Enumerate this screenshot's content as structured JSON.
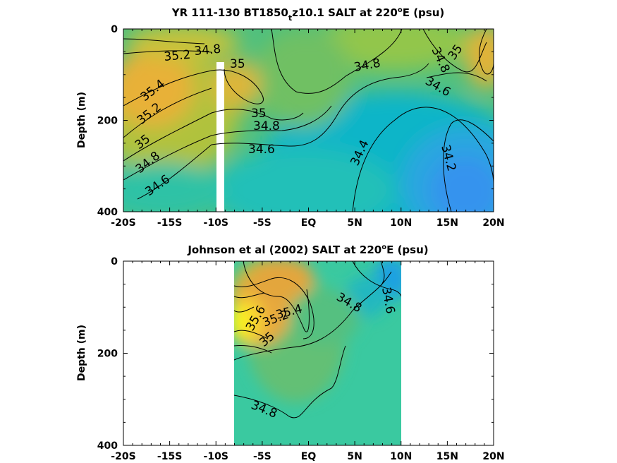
{
  "chart_data": [
    {
      "type": "heatmap",
      "title_main": "YR 111-130 BT1850",
      "title_sub": "t",
      "title_rest": "z10.1 SALT at 220",
      "title_sup": "o",
      "title_end": "E (psu)",
      "ylabel": "Depth (m)",
      "xlabel": "",
      "x_ticks": [
        "-20S",
        "-15S",
        "-10S",
        "-5S",
        "EQ",
        "5N",
        "10N",
        "15N",
        "20N"
      ],
      "x_tick_values": [
        -20,
        -15,
        -10,
        -5,
        0,
        5,
        10,
        15,
        20
      ],
      "y_ticks": [
        "0",
        "200",
        "400"
      ],
      "y_tick_values": [
        0,
        200,
        400
      ],
      "xlim": [
        -20,
        20
      ],
      "ylim": [
        0,
        400
      ],
      "y_reversed": true,
      "contour_levels": [
        34.2,
        34.4,
        34.6,
        34.8,
        35,
        35.2,
        35.4
      ],
      "contour_labels": [
        {
          "text": "35.2",
          "x": -14.5,
          "y": 58
        },
        {
          "text": "34.8",
          "x": -11.0,
          "y": 48
        },
        {
          "text": "35",
          "x": -7.5,
          "y": 72
        },
        {
          "text": "35.4",
          "x": -17.0,
          "y": 135
        },
        {
          "text": "35.2",
          "x": -17.5,
          "y": 185
        },
        {
          "text": "35",
          "x": -19.0,
          "y": 240
        },
        {
          "text": "34.8",
          "x": -18.0,
          "y": 280
        },
        {
          "text": "34.6",
          "x": -16.5,
          "y": 330
        },
        {
          "text": "35",
          "x": -5.5,
          "y": 180
        },
        {
          "text": "34.8",
          "x": -4.5,
          "y": 210
        },
        {
          "text": "34.6",
          "x": -5.0,
          "y": 260
        },
        {
          "text": "34.8",
          "x": 6.8,
          "y": 75
        },
        {
          "text": "34.4",
          "x": 6.0,
          "y": 260
        },
        {
          "text": "34.8",
          "x": 13.5,
          "y": 75
        },
        {
          "text": "35",
          "x": 16.3,
          "y": 62
        },
        {
          "text": "34.6",
          "x": 13.5,
          "y": 120
        },
        {
          "text": "34.2",
          "x": 15.8,
          "y": 290
        }
      ],
      "missing_column_x": [
        -10.9,
        -10.0
      ],
      "missing_column_top_depth": 75
    },
    {
      "type": "heatmap",
      "title_main": "Johnson et al (2002) SALT at 220",
      "title_sup": "o",
      "title_end": "E (psu)",
      "ylabel": "Depth (m)",
      "xlabel": "",
      "x_ticks": [
        "-20S",
        "-15S",
        "-10S",
        "-5S",
        "EQ",
        "5N",
        "10N",
        "15N",
        "20N"
      ],
      "x_tick_values": [
        -20,
        -15,
        -10,
        -5,
        0,
        5,
        10,
        15,
        20
      ],
      "y_ticks": [
        "0",
        "200",
        "400"
      ],
      "y_tick_values": [
        0,
        200,
        400
      ],
      "xlim": [
        -20,
        20
      ],
      "ylim": [
        0,
        400
      ],
      "y_reversed": true,
      "data_xrange": [
        -8,
        10
      ],
      "contour_levels": [
        34.6,
        34.8,
        35,
        35.2,
        35.4,
        35.6
      ],
      "contour_labels": [
        {
          "text": "35.4",
          "x": -2.3,
          "y": 110
        },
        {
          "text": "35.2",
          "x": -4.3,
          "y": 130
        },
        {
          "text": "35.6",
          "x": -6.0,
          "y": 120
        },
        {
          "text": "35",
          "x": -5.5,
          "y": 165
        },
        {
          "text": "34.8",
          "x": 4.6,
          "y": 100
        },
        {
          "text": "34.6",
          "x": 8.1,
          "y": 90
        },
        {
          "text": "34.8",
          "x": -4.5,
          "y": 325
        }
      ]
    }
  ]
}
